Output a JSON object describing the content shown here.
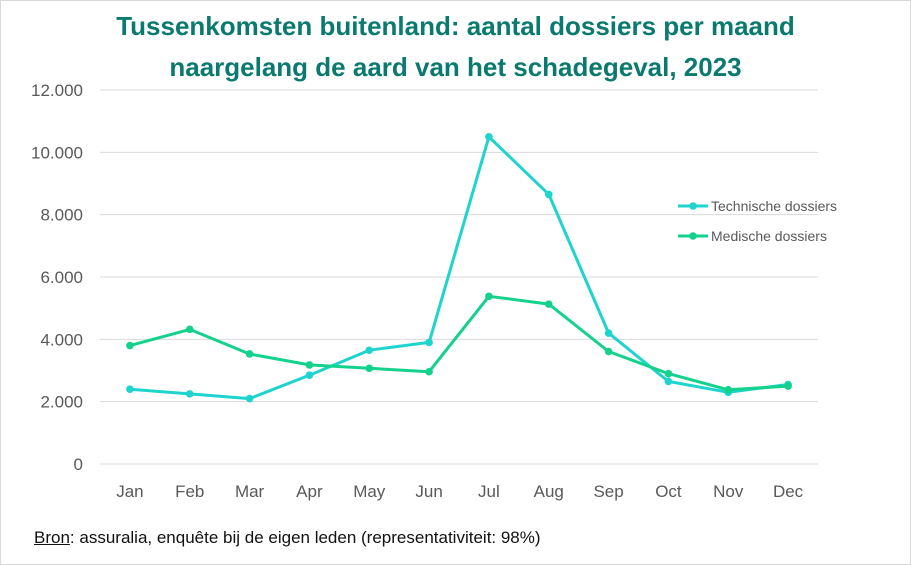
{
  "chart_data": {
    "type": "line",
    "title_lines": [
      "Tussenkomsten buitenland: aantal dossiers per maand",
      "naargelang de aard van het schadegeval, 2023"
    ],
    "categories": [
      "Jan",
      "Feb",
      "Mar",
      "Apr",
      "May",
      "Jun",
      "Jul",
      "Aug",
      "Sep",
      "Oct",
      "Nov",
      "Dec"
    ],
    "series": [
      {
        "name": "Technische dossiers",
        "color": "#1fd3cf",
        "values": [
          2400,
          2250,
          2100,
          2850,
          3650,
          3900,
          10500,
          8650,
          4200,
          2650,
          2300,
          2550
        ]
      },
      {
        "name": "Medische dossiers",
        "color": "#14d18c",
        "values": [
          3800,
          4320,
          3530,
          3180,
          3070,
          2960,
          5380,
          5130,
          3610,
          2900,
          2380,
          2500
        ]
      }
    ],
    "ylim": [
      0,
      12000
    ],
    "yticks": [
      0,
      2000,
      4000,
      6000,
      8000,
      10000,
      12000
    ],
    "ytick_labels": [
      "0",
      "2.000",
      "4.000",
      "6.000",
      "8.000",
      "10.000",
      "12.000"
    ],
    "xlabel": "",
    "ylabel": "",
    "grid": true,
    "legend_position": "right"
  },
  "source": {
    "label": "Bron",
    "text": ": assuralia, enquête bij de eigen leden (representativiteit: 98%)"
  }
}
